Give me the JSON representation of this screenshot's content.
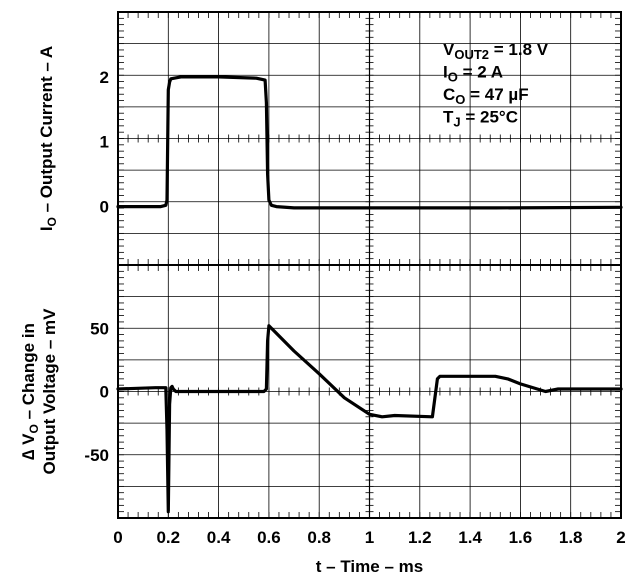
{
  "chart_data": [
    {
      "type": "line",
      "panel": "top",
      "ylabel_main": "I",
      "ylabel_sub": "O",
      "ylabel_rest": " – Output Current – A",
      "xlim": [
        0,
        2
      ],
      "ylim": [
        -0.9,
        3
      ],
      "y_ticks": [
        0,
        1,
        2
      ],
      "y_tick_labels": [
        "0",
        "1",
        "2"
      ],
      "grid": true,
      "series": [
        {
          "x": [
            0,
            0.17,
            0.19,
            0.195,
            0.2,
            0.205,
            0.21,
            0.25,
            0.4,
            0.55,
            0.585,
            0.59,
            0.595,
            0.6,
            0.61,
            0.63,
            0.7,
            1.0,
            1.5,
            2.0
          ],
          "values": [
            0,
            0,
            0.02,
            0.1,
            1.8,
            1.92,
            1.97,
            2.0,
            2.0,
            1.98,
            1.95,
            1.6,
            0.5,
            0.1,
            0.02,
            0.0,
            -0.02,
            -0.02,
            -0.02,
            -0.01
          ]
        }
      ],
      "annotations": [
        {
          "main": "V",
          "sub": "OUT2",
          "rest": " = 1.8 V"
        },
        {
          "main": "I",
          "sub": "O",
          "rest": " = 2 A"
        },
        {
          "main": "C",
          "sub": "O",
          "rest": " = 47 µF"
        },
        {
          "main": "T",
          "sub": "J",
          "rest": " = 25°C"
        }
      ]
    },
    {
      "type": "line",
      "panel": "bottom",
      "ylabel_line1_pre": "∆ V",
      "ylabel_line1_sub": "O",
      "ylabel_line1_rest": " – Change in",
      "ylabel_line2": "Output Voltage – mV",
      "xlabel": "t – Time – ms",
      "xlim": [
        0,
        2
      ],
      "ylim": [
        -100,
        100
      ],
      "x_ticks": [
        0,
        0.2,
        0.4,
        0.6,
        0.8,
        1,
        1.2,
        1.4,
        1.6,
        1.8,
        2
      ],
      "x_tick_labels": [
        "0",
        "0.2",
        "0.4",
        "0.6",
        "0.8",
        "1",
        "1.2",
        "1.4",
        "1.6",
        "1.8",
        "2"
      ],
      "y_ticks": [
        50,
        0,
        -50
      ],
      "y_tick_labels": [
        "50",
        "0",
        "-50"
      ],
      "grid": true,
      "series": [
        {
          "x": [
            0,
            0.15,
            0.18,
            0.19,
            0.195,
            0.2,
            0.205,
            0.21,
            0.215,
            0.22,
            0.23,
            0.25,
            0.4,
            0.58,
            0.59,
            0.595,
            0.6,
            0.62,
            0.7,
            0.8,
            0.9,
            1.0,
            1.05,
            1.1,
            1.25,
            1.26,
            1.27,
            1.28,
            1.3,
            1.5,
            1.55,
            1.6,
            1.7,
            1.75,
            2.0
          ],
          "values": [
            2,
            3,
            3,
            3,
            -30,
            -95,
            -10,
            3,
            4,
            2,
            0,
            0,
            0,
            0,
            2,
            40,
            52,
            48,
            32,
            14,
            -5,
            -18,
            -20,
            -19,
            -20,
            -5,
            10,
            12,
            12,
            12,
            10,
            6,
            0,
            2,
            2
          ]
        }
      ]
    }
  ]
}
